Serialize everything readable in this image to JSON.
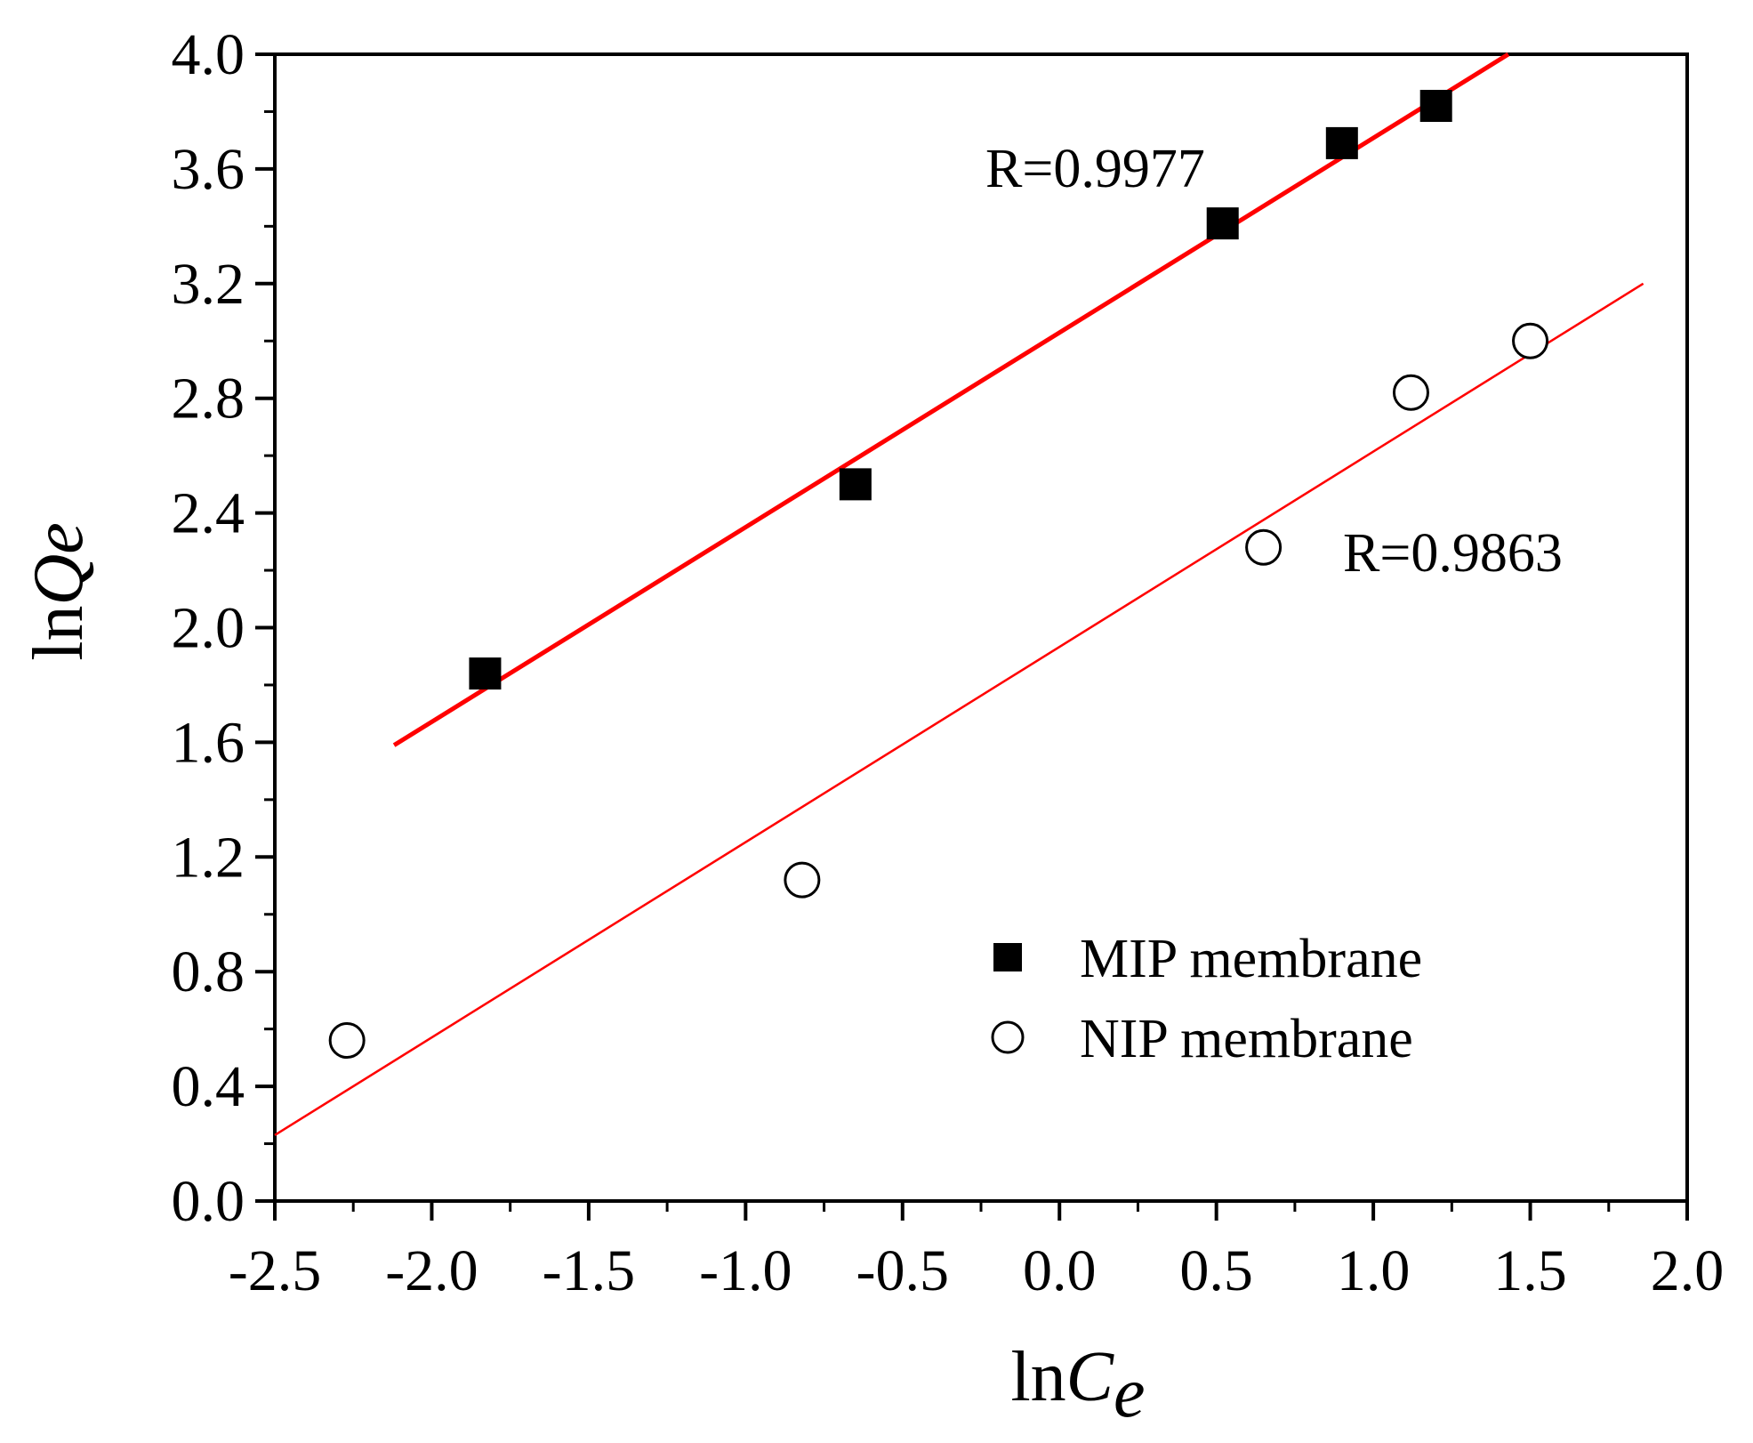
{
  "chart_data": {
    "type": "scatter",
    "xlabel_prefix": "ln",
    "xlabel_var": "C",
    "xlabel_sub": "e",
    "ylabel_prefix": "ln",
    "ylabel_var": "Q",
    "ylabel_sub": "e",
    "xlim": [
      -2.5,
      2.0
    ],
    "ylim": [
      0.0,
      4.0
    ],
    "x_ticks": [
      -2.5,
      -2.0,
      -1.5,
      -1.0,
      -0.5,
      0.0,
      0.5,
      1.0,
      1.5,
      2.0
    ],
    "x_tick_labels": [
      "-2.5",
      "-2.0",
      "-1.5",
      "-1.0",
      "-0.5",
      "0.0",
      "0.5",
      "1.0",
      "1.5",
      "2.0"
    ],
    "y_ticks": [
      0.0,
      0.4,
      0.8,
      1.2,
      1.6,
      2.0,
      2.4,
      2.8,
      3.2,
      3.6,
      4.0
    ],
    "y_tick_labels": [
      "0.0",
      "0.4",
      "0.8",
      "1.2",
      "1.6",
      "2.0",
      "2.4",
      "2.8",
      "3.2",
      "3.6",
      "4.0"
    ],
    "legend_position": "lower-right",
    "series": [
      {
        "name": "MIP membrane",
        "marker": "filled-square",
        "x": [
          -1.83,
          -0.65,
          0.52,
          0.9,
          1.2
        ],
        "y": [
          1.84,
          2.5,
          3.41,
          3.69,
          3.82
        ],
        "fit": {
          "x": [
            -2.12,
            1.43
          ],
          "y": [
            1.59,
            4.0
          ],
          "color": "#ff0000",
          "width": "thick"
        },
        "annotation": "R=0.9977"
      },
      {
        "name": "NIP membrane",
        "marker": "open-circle",
        "x": [
          -2.27,
          -0.82,
          0.65,
          1.12,
          1.5
        ],
        "y": [
          0.56,
          1.12,
          2.28,
          2.82,
          3.0
        ],
        "fit": {
          "x": [
            -2.5,
            1.86
          ],
          "y": [
            0.23,
            3.2
          ],
          "color": "#ff0000",
          "width": "thin"
        },
        "annotation": "R=0.9863"
      }
    ]
  }
}
